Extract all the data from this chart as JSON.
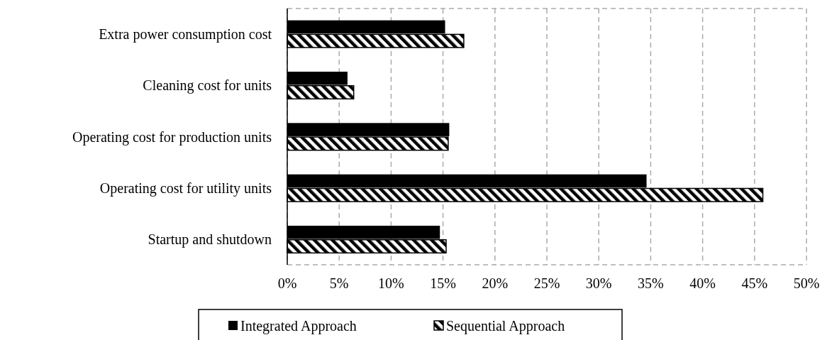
{
  "chart_data": {
    "type": "bar",
    "orientation": "horizontal",
    "categories": [
      "Extra power consumption cost",
      "Cleaning cost for units",
      "Operating cost for production units",
      "Operating cost for utility units",
      "Startup and shutdown"
    ],
    "series": [
      {
        "name": "Integrated Approach",
        "color": "#000000",
        "values": [
          15.2,
          5.8,
          15.6,
          34.6,
          14.7
        ]
      },
      {
        "name": "Sequential Approach",
        "color": "#000000",
        "values": [
          17.0,
          6.4,
          15.5,
          45.8,
          15.3
        ]
      }
    ],
    "xlim": [
      0,
      50
    ],
    "xticks": [
      {
        "value": 0,
        "label": "0%"
      },
      {
        "value": 5,
        "label": "5%"
      },
      {
        "value": 10,
        "label": "10%"
      },
      {
        "value": 15,
        "label": "15%"
      },
      {
        "value": 20,
        "label": "20%"
      },
      {
        "value": 25,
        "label": "25%"
      },
      {
        "value": 30,
        "label": "30%"
      },
      {
        "value": 35,
        "label": "35%"
      },
      {
        "value": 40,
        "label": "40%"
      },
      {
        "value": 45,
        "label": "45%"
      },
      {
        "value": 50,
        "label": "50%"
      }
    ],
    "grid": "x",
    "legend": "bottom"
  }
}
